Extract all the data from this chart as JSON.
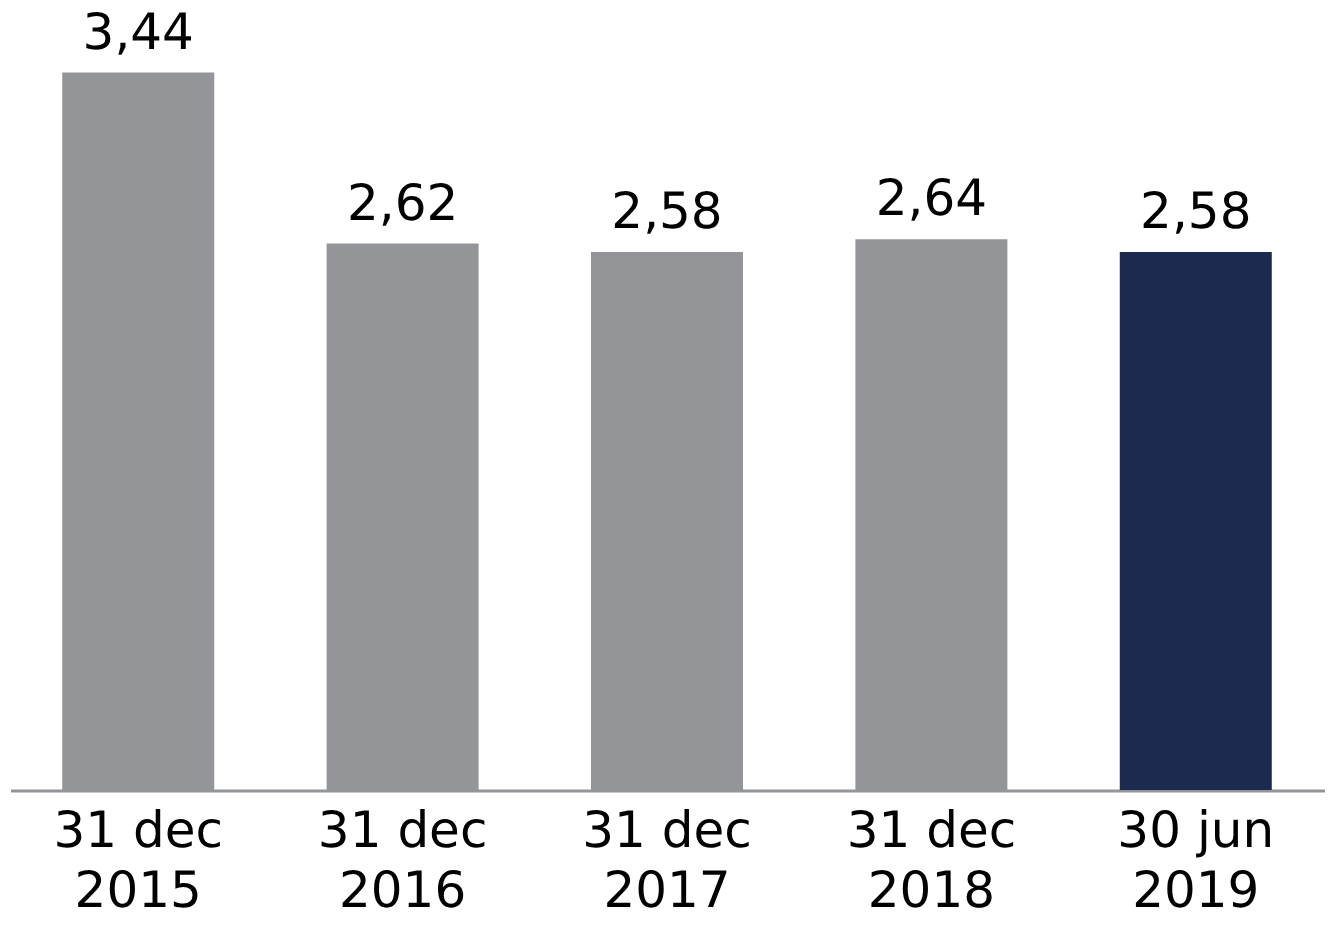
{
  "chart_data": {
    "type": "bar",
    "categories": [
      "31 dec 2015",
      "31 dec 2016",
      "31 dec 2017",
      "31 dec 2018",
      "30 jun 2019"
    ],
    "values": [
      3.44,
      2.62,
      2.58,
      2.64,
      2.58
    ],
    "value_labels": [
      "3,44",
      "2,62",
      "2,58",
      "2,64",
      "2,58"
    ],
    "colors": [
      "#939598",
      "#939598",
      "#939598",
      "#939598",
      "#1b2a4e"
    ]
  }
}
